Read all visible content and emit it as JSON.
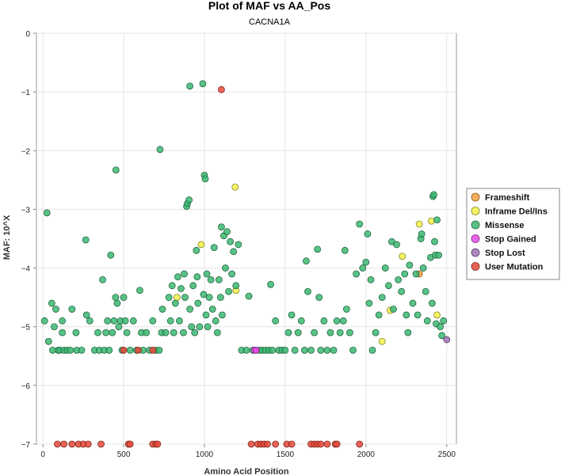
{
  "chart_data": {
    "type": "scatter",
    "title": "Plot of MAF vs AA_Pos",
    "subtitle": "CACNA1A",
    "xlabel": "Amino Acid Position",
    "ylabel": "MAF: 10^X",
    "xlim": [
      -40,
      2560
    ],
    "ylim": [
      -7,
      0
    ],
    "xticks": [
      0,
      500,
      1000,
      1500,
      2000,
      2500
    ],
    "yticks": [
      0,
      -1,
      -2,
      -3,
      -4,
      -5,
      -6,
      -7
    ],
    "xtick_labels": [
      "0",
      "500",
      "1000",
      "1500",
      "2000",
      "2500"
    ],
    "ytick_labels": [
      "0",
      "−1",
      "−2",
      "−3",
      "−4",
      "−5",
      "−6",
      "−7"
    ],
    "grid": true,
    "legend_position": "right",
    "series": [
      {
        "name": "Frameshift",
        "color": "#f5a040",
        "points": [
          [
            2330,
            -4.1
          ]
        ]
      },
      {
        "name": "Inframe Del/Ins",
        "color": "#f2f24a",
        "points": [
          [
            830,
            -4.5
          ],
          [
            980,
            -3.6
          ],
          [
            1190,
            -2.62
          ],
          [
            1195,
            -4.38
          ],
          [
            2100,
            -5.25
          ],
          [
            2150,
            -4.72
          ],
          [
            2225,
            -3.8
          ],
          [
            2330,
            -3.25
          ],
          [
            2405,
            -3.2
          ],
          [
            2440,
            -4.8
          ]
        ]
      },
      {
        "name": "Missense",
        "color": "#3cb872",
        "points": [
          [
            10,
            -4.9
          ],
          [
            25,
            -3.06
          ],
          [
            35,
            -5.25
          ],
          [
            55,
            -4.6
          ],
          [
            60,
            -5.4
          ],
          [
            70,
            -5.0
          ],
          [
            80,
            -4.7
          ],
          [
            95,
            -5.4
          ],
          [
            105,
            -5.4
          ],
          [
            120,
            -5.1
          ],
          [
            120,
            -4.9
          ],
          [
            130,
            -5.4
          ],
          [
            150,
            -5.4
          ],
          [
            170,
            -5.4
          ],
          [
            180,
            -4.7
          ],
          [
            205,
            -5.1
          ],
          [
            210,
            -5.4
          ],
          [
            240,
            -5.4
          ],
          [
            265,
            -3.52
          ],
          [
            270,
            -4.8
          ],
          [
            290,
            -4.9
          ],
          [
            320,
            -5.4
          ],
          [
            340,
            -5.1
          ],
          [
            350,
            -5.4
          ],
          [
            370,
            -4.2
          ],
          [
            380,
            -5.4
          ],
          [
            390,
            -5.1
          ],
          [
            400,
            -4.9
          ],
          [
            410,
            -5.4
          ],
          [
            420,
            -3.78
          ],
          [
            430,
            -5.1
          ],
          [
            440,
            -4.9
          ],
          [
            450,
            -4.5
          ],
          [
            452,
            -2.33
          ],
          [
            460,
            -4.6
          ],
          [
            470,
            -5.0
          ],
          [
            480,
            -4.9
          ],
          [
            490,
            -5.4
          ],
          [
            500,
            -4.5
          ],
          [
            510,
            -4.9
          ],
          [
            520,
            -5.1
          ],
          [
            540,
            -5.4
          ],
          [
            560,
            -4.9
          ],
          [
            580,
            -5.4
          ],
          [
            600,
            -4.38
          ],
          [
            610,
            -5.1
          ],
          [
            620,
            -5.4
          ],
          [
            640,
            -5.1
          ],
          [
            660,
            -5.4
          ],
          [
            680,
            -4.9
          ],
          [
            700,
            -5.4
          ],
          [
            720,
            -5.4
          ],
          [
            725,
            -1.98
          ],
          [
            735,
            -5.1
          ],
          [
            740,
            -4.7
          ],
          [
            760,
            -5.1
          ],
          [
            780,
            -4.5
          ],
          [
            790,
            -4.9
          ],
          [
            800,
            -4.3
          ],
          [
            810,
            -5.1
          ],
          [
            820,
            -4.6
          ],
          [
            835,
            -4.15
          ],
          [
            845,
            -4.9
          ],
          [
            855,
            -4.35
          ],
          [
            870,
            -5.1
          ],
          [
            875,
            -4.1
          ],
          [
            880,
            -4.5
          ],
          [
            890,
            -2.95
          ],
          [
            895,
            -2.9
          ],
          [
            905,
            -2.84
          ],
          [
            910,
            -0.9
          ],
          [
            910,
            -4.7
          ],
          [
            920,
            -5.0
          ],
          [
            930,
            -4.3
          ],
          [
            940,
            -5.1
          ],
          [
            950,
            -3.7
          ],
          [
            955,
            -4.15
          ],
          [
            960,
            -4.6
          ],
          [
            970,
            -5.0
          ],
          [
            990,
            -0.86
          ],
          [
            995,
            -4.45
          ],
          [
            1000,
            -2.42
          ],
          [
            1005,
            -2.48
          ],
          [
            1010,
            -4.8
          ],
          [
            1015,
            -4.1
          ],
          [
            1020,
            -5.0
          ],
          [
            1030,
            -4.5
          ],
          [
            1040,
            -4.2
          ],
          [
            1050,
            -4.7
          ],
          [
            1060,
            -3.65
          ],
          [
            1070,
            -4.9
          ],
          [
            1080,
            -5.1
          ],
          [
            1090,
            -4.2
          ],
          [
            1100,
            -4.5
          ],
          [
            1105,
            -3.3
          ],
          [
            1110,
            -4.8
          ],
          [
            1120,
            -3.45
          ],
          [
            1130,
            -4.0
          ],
          [
            1140,
            -3.38
          ],
          [
            1150,
            -4.4
          ],
          [
            1160,
            -3.55
          ],
          [
            1170,
            -4.1
          ],
          [
            1180,
            -3.72
          ],
          [
            1195,
            -4.3
          ],
          [
            1210,
            -3.6
          ],
          [
            1230,
            -5.4
          ],
          [
            1260,
            -5.4
          ],
          [
            1275,
            -4.48
          ],
          [
            1300,
            -5.4
          ],
          [
            1320,
            -5.4
          ],
          [
            1340,
            -5.4
          ],
          [
            1360,
            -5.4
          ],
          [
            1380,
            -5.4
          ],
          [
            1400,
            -5.4
          ],
          [
            1410,
            -4.28
          ],
          [
            1420,
            -5.4
          ],
          [
            1440,
            -4.9
          ],
          [
            1460,
            -5.4
          ],
          [
            1480,
            -5.4
          ],
          [
            1500,
            -5.4
          ],
          [
            1520,
            -5.1
          ],
          [
            1540,
            -4.8
          ],
          [
            1560,
            -5.4
          ],
          [
            1580,
            -5.1
          ],
          [
            1600,
            -4.9
          ],
          [
            1620,
            -5.4
          ],
          [
            1630,
            -3.88
          ],
          [
            1640,
            -4.4
          ],
          [
            1660,
            -5.4
          ],
          [
            1680,
            -5.1
          ],
          [
            1700,
            -3.68
          ],
          [
            1710,
            -4.5
          ],
          [
            1720,
            -5.4
          ],
          [
            1740,
            -4.9
          ],
          [
            1760,
            -5.4
          ],
          [
            1780,
            -5.1
          ],
          [
            1800,
            -5.4
          ],
          [
            1820,
            -4.9
          ],
          [
            1840,
            -5.1
          ],
          [
            1860,
            -4.9
          ],
          [
            1870,
            -3.7
          ],
          [
            1880,
            -4.7
          ],
          [
            1900,
            -5.1
          ],
          [
            1920,
            -5.4
          ],
          [
            1940,
            -4.1
          ],
          [
            1960,
            -3.25
          ],
          [
            1980,
            -4.0
          ],
          [
            2000,
            -3.9
          ],
          [
            2010,
            -3.42
          ],
          [
            2020,
            -4.6
          ],
          [
            2030,
            -4.2
          ],
          [
            2040,
            -5.4
          ],
          [
            2060,
            -5.1
          ],
          [
            2080,
            -4.8
          ],
          [
            2100,
            -4.5
          ],
          [
            2120,
            -4.0
          ],
          [
            2140,
            -4.3
          ],
          [
            2160,
            -3.55
          ],
          [
            2170,
            -4.7
          ],
          [
            2190,
            -3.6
          ],
          [
            2200,
            -4.2
          ],
          [
            2220,
            -4.4
          ],
          [
            2240,
            -4.1
          ],
          [
            2250,
            -4.8
          ],
          [
            2260,
            -5.1
          ],
          [
            2270,
            -3.95
          ],
          [
            2290,
            -4.6
          ],
          [
            2310,
            -4.1
          ],
          [
            2320,
            -4.8
          ],
          [
            2340,
            -3.5
          ],
          [
            2345,
            -3.42
          ],
          [
            2355,
            -4.0
          ],
          [
            2370,
            -4.4
          ],
          [
            2380,
            -4.9
          ],
          [
            2400,
            -3.82
          ],
          [
            2410,
            -4.6
          ],
          [
            2415,
            -2.78
          ],
          [
            2420,
            -2.75
          ],
          [
            2425,
            -3.55
          ],
          [
            2430,
            -3.78
          ],
          [
            2435,
            -4.95
          ],
          [
            2440,
            -3.18
          ],
          [
            2450,
            -3.78
          ],
          [
            2460,
            -5.0
          ],
          [
            2470,
            -5.15
          ],
          [
            2480,
            -4.9
          ]
        ]
      },
      {
        "name": "Stop Gained",
        "color": "#e84ae8",
        "points": [
          [
            1310,
            -5.4
          ],
          [
            1320,
            -5.4
          ]
        ]
      },
      {
        "name": "Stop Lost",
        "color": "#a070b8",
        "points": [
          [
            2500,
            -5.22
          ]
        ]
      },
      {
        "name": "User Mutation",
        "color": "#e8483a",
        "points": [
          [
            500,
            -5.4
          ],
          [
            590,
            -5.4
          ],
          [
            680,
            -5.4
          ],
          [
            1105,
            -0.96
          ],
          [
            90,
            -7.0
          ],
          [
            130,
            -7.0
          ],
          [
            180,
            -7.0
          ],
          [
            220,
            -7.0
          ],
          [
            250,
            -7.0
          ],
          [
            280,
            -7.0
          ],
          [
            360,
            -7.0
          ],
          [
            530,
            -7.0
          ],
          [
            540,
            -7.0
          ],
          [
            680,
            -7.0
          ],
          [
            700,
            -7.0
          ],
          [
            710,
            -7.0
          ],
          [
            1290,
            -7.0
          ],
          [
            1330,
            -7.0
          ],
          [
            1350,
            -7.0
          ],
          [
            1370,
            -7.0
          ],
          [
            1390,
            -7.0
          ],
          [
            1440,
            -7.0
          ],
          [
            1510,
            -7.0
          ],
          [
            1540,
            -7.0
          ],
          [
            1660,
            -7.0
          ],
          [
            1680,
            -7.0
          ],
          [
            1700,
            -7.0
          ],
          [
            1720,
            -7.0
          ],
          [
            1760,
            -7.0
          ],
          [
            1810,
            -7.0
          ],
          [
            1820,
            -7.0
          ],
          [
            1960,
            -7.0
          ]
        ]
      }
    ]
  }
}
